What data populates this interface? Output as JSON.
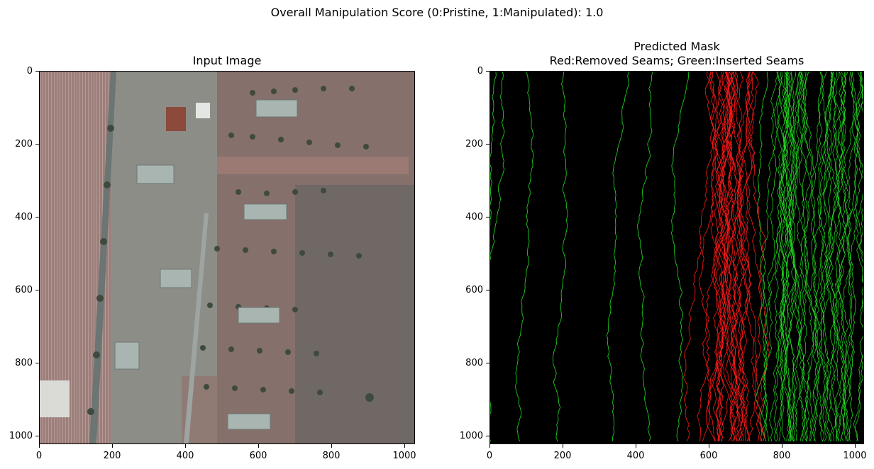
{
  "figure": {
    "suptitle": "Overall Manipulation Score (0:Pristine, 1:Manipulated): 1.0"
  },
  "left_panel": {
    "title": "Input Image",
    "image_label": "aerial-farm-photo",
    "x_ticks": [
      "0",
      "200",
      "400",
      "600",
      "800",
      "1000"
    ],
    "y_ticks": [
      "0",
      "200",
      "400",
      "600",
      "800",
      "1000"
    ]
  },
  "right_panel": {
    "title_line1": "Predicted Mask",
    "title_line2": "Red:Removed Seams; Green:Inserted Seams",
    "x_ticks": [
      "0",
      "200",
      "400",
      "600",
      "800",
      "1000"
    ],
    "y_ticks": [
      "0",
      "200",
      "400",
      "600",
      "800",
      "1000"
    ]
  },
  "colors": {
    "removed_seam": "#ff1a1a",
    "inserted_seam": "#22e022",
    "mask_background": "#000000"
  }
}
